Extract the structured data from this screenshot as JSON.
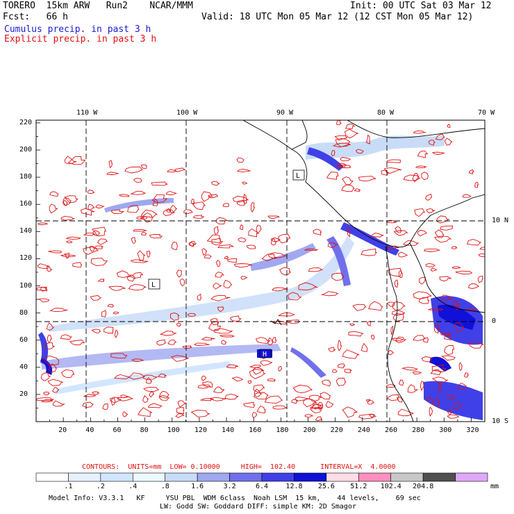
{
  "header": {
    "model": "TORERO  15km ARW   Run2    NCAR/MMM",
    "init": "Init: 00 UTC Sat 03 Mar 12",
    "fcst": "Fcst:   66 h",
    "valid": "Valid: 18 UTC Mon 05 Mar 12 (12 CST Mon 05 Mar 12)",
    "cumulus": "Cumulus precip. in past 3 h",
    "explicit": "Explicit precip. in past 3 h"
  },
  "axes": {
    "lon_labels": [
      "110 W",
      "100 W",
      "90 W",
      "80 W",
      "70 W"
    ],
    "lat_labels": [
      "10 N",
      "0",
      "10 S"
    ],
    "x_ticks": [
      "20",
      "40",
      "60",
      "80",
      "100",
      "120",
      "140",
      "160",
      "180",
      "200",
      "220",
      "240",
      "260",
      "280",
      "300",
      "320"
    ],
    "y_ticks": [
      "20",
      "40",
      "60",
      "80",
      "100",
      "120",
      "140",
      "160",
      "180",
      "200",
      "220"
    ]
  },
  "map_labels": {
    "low1": "L",
    "low2": "L",
    "high1": "H"
  },
  "contours_line": {
    "label": "CONTOURS:  UNITS=mm  LOW= 0.10000     HIGH=  102.40      INTERVAL=X  4.0000"
  },
  "colorbar": {
    "labels": [
      ".1",
      ".2",
      ".4",
      ".8",
      "1.6",
      "3.2",
      "6.4",
      "12.8",
      "25.6",
      "51.2",
      "102.4",
      "204.8"
    ],
    "unit": "mm",
    "colors": [
      "#ffffff",
      "#e6f0ff",
      "#d2e6ff",
      "#ecfaff",
      "#c8dcf8",
      "#a0a8f0",
      "#7070ec",
      "#4040e8",
      "#1010d8",
      "#ffdce6",
      "#ff90c0",
      "#c8c8c8",
      "#505050",
      "#e0a8f8"
    ]
  },
  "footer": {
    "line1": "Model Info: V3.3.1   KF     YSU PBL  WDM 6class  Noah LSM  15 km,    44 levels,    69 sec",
    "line2": "LW: Godd SW: Goddard DIFF: simple KM: 2D Smagor"
  }
}
